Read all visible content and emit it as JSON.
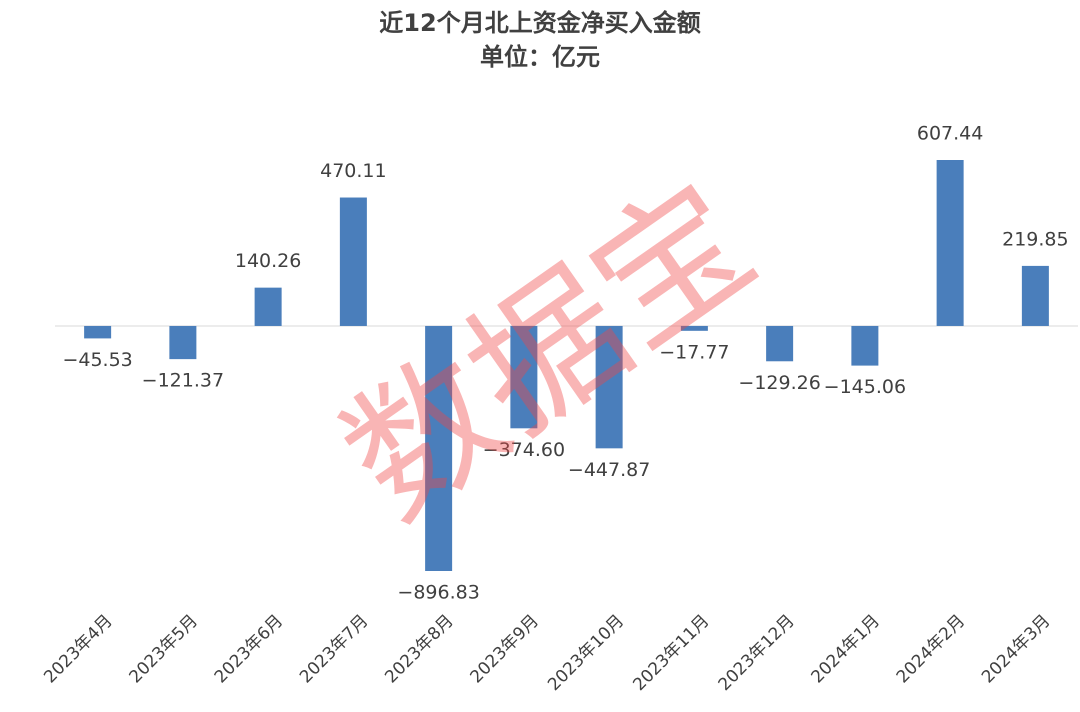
{
  "chart_data": {
    "type": "bar",
    "title": "近12个月北上资金净买入金额",
    "subtitle": "单位：亿元",
    "categories": [
      "2023年4月",
      "2023年5月",
      "2023年6月",
      "2023年7月",
      "2023年8月",
      "2023年9月",
      "2023年10月",
      "2023年11月",
      "2023年12月",
      "2024年1月",
      "2024年2月",
      "2024年3月"
    ],
    "values": [
      -45.53,
      -121.37,
      140.26,
      470.11,
      -896.83,
      -374.6,
      -447.87,
      -17.77,
      -129.26,
      -145.06,
      607.44,
      219.85
    ],
    "value_labels": [
      "−45.53",
      "−121.37",
      "140.26",
      "470.11",
      "−896.83",
      "−374.60",
      "−447.87",
      "−17.77",
      "−129.26",
      "−145.06",
      "607.44",
      "219.85"
    ],
    "color": "#4a7ebb",
    "watermark": "数据宝"
  }
}
